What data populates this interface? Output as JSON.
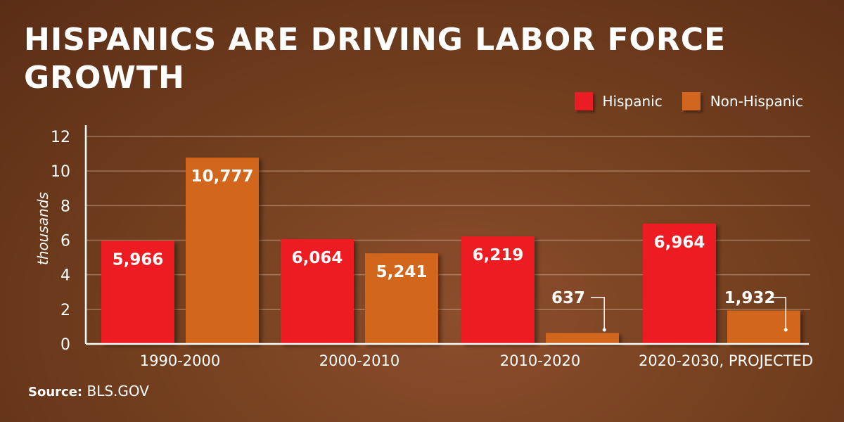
{
  "chart_data": {
    "type": "bar",
    "title": "HISPANICS ARE DRIVING LABOR FORCE GROWTH",
    "ylabel": "thousands",
    "xlabel": "",
    "ylim": [
      0,
      12
    ],
    "yticks": [
      0,
      2,
      4,
      6,
      8,
      10,
      12
    ],
    "grid": true,
    "legend_placement": "top-right",
    "categories": [
      "1990-2000",
      "2000-2010",
      "2010-2020",
      "2020-2030, PROJECTED"
    ],
    "series": [
      {
        "name": "Hispanic",
        "color": "#ec1c24",
        "values": [
          5.966,
          6.064,
          6.219,
          6.964
        ],
        "labels": [
          "5,966",
          "6,064",
          "6,219",
          "6,964"
        ]
      },
      {
        "name": "Non-Hispanic",
        "color": "#d2661e",
        "values": [
          10.777,
          5.241,
          0.637,
          1.932
        ],
        "labels": [
          "10,777",
          "5,241",
          "637",
          "1,932"
        ]
      }
    ]
  },
  "source": {
    "label": "Source:",
    "value": "BLS.GOV"
  }
}
